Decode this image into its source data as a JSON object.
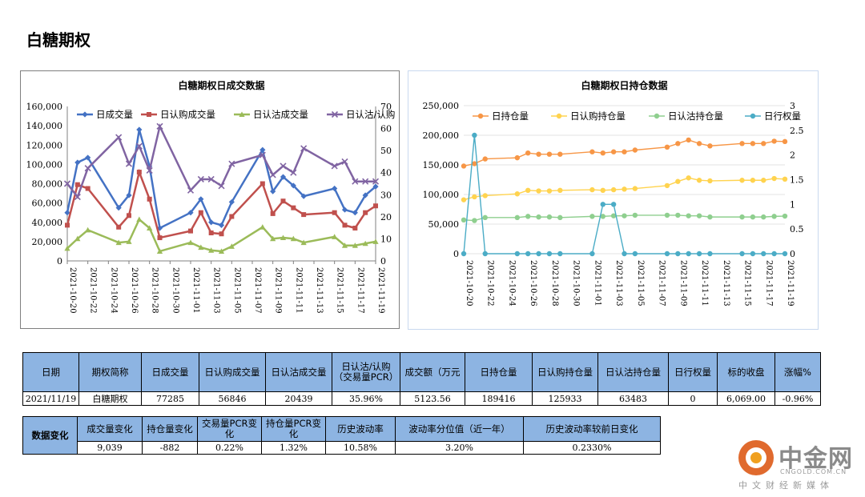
{
  "page": {
    "title": "白糖期权"
  },
  "chart_data": [
    {
      "type": "line",
      "title": "白糖期权日成交数据",
      "x": [
        "2021-10-20",
        "2021-10-21",
        "2021-10-22",
        "2021-10-25",
        "2021-10-26",
        "2021-10-27",
        "2021-10-28",
        "2021-10-29",
        "2021-11-01",
        "2021-11-02",
        "2021-11-03",
        "2021-11-04",
        "2021-11-05",
        "2021-11-08",
        "2021-11-09",
        "2021-11-10",
        "2021-11-11",
        "2021-11-12",
        "2021-11-15",
        "2021-11-16",
        "2021-11-17",
        "2021-11-18",
        "2021-11-19"
      ],
      "xticks": [
        "2021-10-20",
        "2021-10-22",
        "2021-10-24",
        "2021-10-26",
        "2021-10-28",
        "2021-10-30",
        "2021-11-01",
        "2021-11-03",
        "2021-11-05",
        "2021-11-07",
        "2021-11-09",
        "2021-11-11",
        "2021-11-13",
        "2021-11-15",
        "2021-11-17",
        "2021-11-19"
      ],
      "x_range": [
        "2021-10-20",
        "2021-11-19"
      ],
      "ylim": [
        0,
        160000
      ],
      "yticks": [
        "0",
        "20,000",
        "40,000",
        "60,000",
        "80,000",
        "100,000",
        "120,000",
        "140,000",
        "160,000"
      ],
      "y2lim": [
        0,
        70
      ],
      "y2ticks": [
        "0",
        "10",
        "20",
        "30",
        "40",
        "50",
        "60",
        "70"
      ],
      "legend_position": "top",
      "series": [
        {
          "name": "日成交量",
          "axis": "left",
          "color": "#4472c4",
          "marker": "diamond",
          "values": [
            50000,
            102000,
            107000,
            55000,
            68000,
            136000,
            98000,
            34000,
            50000,
            64000,
            40000,
            37000,
            61000,
            115000,
            72000,
            87000,
            78000,
            67000,
            75000,
            53000,
            50000,
            68000,
            77000
          ]
        },
        {
          "name": "日认购成交量",
          "axis": "left",
          "color": "#c0504d",
          "marker": "square",
          "values": [
            37000,
            79000,
            75000,
            35000,
            47000,
            92000,
            64000,
            24000,
            31000,
            50000,
            29000,
            28000,
            46000,
            80000,
            49000,
            62000,
            55000,
            48000,
            50000,
            37000,
            34000,
            50000,
            57000
          ]
        },
        {
          "name": "日认沽成交量",
          "axis": "left",
          "color": "#9bbb59",
          "marker": "triangle",
          "values": [
            13000,
            23000,
            32000,
            19000,
            20000,
            43000,
            34000,
            10000,
            19000,
            14000,
            11000,
            10000,
            15000,
            35000,
            23000,
            24000,
            23000,
            19000,
            25000,
            16000,
            16000,
            18000,
            20000
          ]
        },
        {
          "name": "日认沽/认购",
          "axis": "right",
          "color": "#8064a2",
          "marker": "x",
          "values": [
            35,
            29,
            42,
            56,
            44,
            52,
            41,
            61,
            32,
            37,
            37,
            34,
            44,
            48,
            39,
            43,
            40,
            51,
            43,
            45,
            36,
            36,
            36
          ]
        }
      ]
    },
    {
      "type": "line",
      "title": "白糖期权日持仓数据",
      "x": [
        "2021-10-20",
        "2021-10-21",
        "2021-10-22",
        "2021-10-25",
        "2021-10-26",
        "2021-10-27",
        "2021-10-28",
        "2021-10-29",
        "2021-11-01",
        "2021-11-02",
        "2021-11-03",
        "2021-11-04",
        "2021-11-05",
        "2021-11-08",
        "2021-11-09",
        "2021-11-10",
        "2021-11-11",
        "2021-11-12",
        "2021-11-15",
        "2021-11-16",
        "2021-11-17",
        "2021-11-18",
        "2021-11-19"
      ],
      "xticks": [
        "2021-10-20",
        "2021-10-22",
        "2021-10-24",
        "2021-10-26",
        "2021-10-28",
        "2021-10-30",
        "2021-11-01",
        "2021-11-03",
        "2021-11-05",
        "2021-11-07",
        "2021-11-09",
        "2021-11-11",
        "2021-11-13",
        "2021-11-15",
        "2021-11-17",
        "2021-11-19"
      ],
      "x_range": [
        "2021-10-20",
        "2021-11-19"
      ],
      "ylim": [
        0,
        250000
      ],
      "yticks": [
        "0",
        "50,000",
        "100,000",
        "150,000",
        "200,000",
        "250,000"
      ],
      "y2lim": [
        0,
        3
      ],
      "y2ticks": [
        "0",
        "0.5",
        "1",
        "1.5",
        "2",
        "2.5",
        "3"
      ],
      "legend_position": "top",
      "series": [
        {
          "name": "日持仓量",
          "axis": "left",
          "color": "#f79646",
          "marker": "circle",
          "values": [
            148000,
            152000,
            160000,
            162000,
            170000,
            168000,
            168000,
            168000,
            172000,
            170000,
            172000,
            172000,
            175000,
            180000,
            186000,
            192000,
            186000,
            182000,
            186000,
            186000,
            186000,
            190000,
            189416
          ]
        },
        {
          "name": "日认购持仓量",
          "axis": "left",
          "color": "#ffd34f",
          "marker": "circle",
          "values": [
            91000,
            96000,
            98000,
            101000,
            107000,
            106000,
            106000,
            107000,
            108000,
            107000,
            108000,
            109000,
            110000,
            115000,
            122000,
            128000,
            124000,
            123000,
            124000,
            124000,
            124000,
            127000,
            125933
          ]
        },
        {
          "name": "日认沽持仓量",
          "axis": "left",
          "color": "#8fcf8f",
          "marker": "circle",
          "values": [
            57000,
            56000,
            61000,
            61000,
            63000,
            62000,
            62000,
            61000,
            63000,
            63000,
            64000,
            64000,
            65000,
            65000,
            65000,
            64000,
            64000,
            62000,
            62000,
            62000,
            62000,
            63000,
            63483
          ]
        },
        {
          "name": "日行权量",
          "axis": "right",
          "color": "#4bacc6",
          "marker": "circle",
          "values": [
            0,
            2.4,
            0,
            0,
            0,
            0,
            0,
            0,
            0,
            1,
            1,
            0,
            0,
            0,
            0,
            0,
            0,
            0,
            0,
            0,
            0,
            0,
            0
          ]
        }
      ]
    }
  ],
  "main_table": {
    "headers": [
      "日期",
      "期权简称",
      "日成交量",
      "日认购成交量",
      "日认沽成交量",
      "日认沽/认购（交易量PCR）",
      "成交额（万元",
      "日持仓量",
      "日认购持仓量",
      "日认沽持仓量",
      "日行权量",
      "标的收盘",
      "涨幅%"
    ],
    "row": [
      "2021/11/19",
      "白糖期权",
      "77285",
      "56846",
      "20439",
      "35.96%",
      "5123.56",
      "189416",
      "125933",
      "63483",
      "0",
      "6,069.00",
      "-0.96%"
    ]
  },
  "change_table": {
    "section_label": "数据变化",
    "headers": [
      "成交量变化",
      "持仓量变化",
      "交易量PCR变化",
      "持仓量PCR变化",
      "历史波动率",
      "波动率分位值（近一年）",
      "历史波动率较前日变化"
    ],
    "row": [
      "9,039",
      "-882",
      "0.22%",
      "1.32%",
      "10.58%",
      "3.20%",
      "0.2330%"
    ]
  },
  "logo": {
    "name": "中金网",
    "domain": "CNGOLD.COM.CN",
    "tagline": "中文财经新媒体"
  }
}
